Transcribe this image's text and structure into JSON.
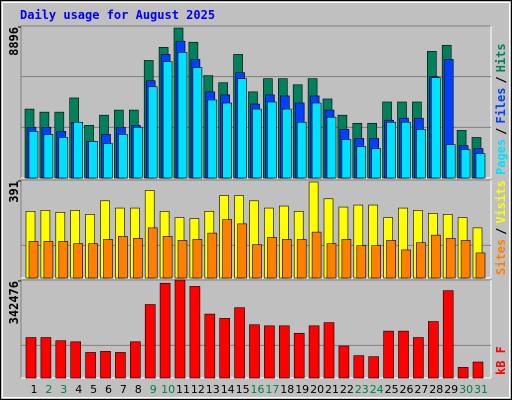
{
  "chart_data": [
    {
      "type": "bar",
      "title": "Daily usage for August 2025",
      "ylim": [
        0,
        8896
      ],
      "yticks": [
        8896
      ],
      "legend_separator": "/",
      "series": [
        {
          "name": "Pages",
          "color": "#00e0ff",
          "values": [
            2728,
            2550,
            2372,
            3262,
            2135,
            2016,
            2550,
            2965,
            5338,
            6820,
            7354,
            6464,
            4567,
            4389,
            5812,
            4033,
            4448,
            4033,
            3262,
            4389,
            3558,
            2254,
            1838,
            1720,
            3262,
            3262,
            2847,
            5871,
            1957,
            1661,
            1423
          ]
        },
        {
          "name": "Files",
          "color": "#0040ff",
          "values": [
            2965,
            2965,
            2728,
            3262,
            2135,
            2550,
            2965,
            3084,
            5693,
            7235,
            8006,
            6939,
            5041,
            4863,
            6168,
            4329,
            4863,
            4804,
            4389,
            4804,
            3974,
            2847,
            2313,
            2313,
            3380,
            3499,
            3499,
            5931,
            6939,
            1898,
            1720
          ]
        },
        {
          "name": "Hits",
          "color": "#00805c",
          "values": [
            4033,
            3855,
            3855,
            4685,
            3084,
            3677,
            3974,
            3974,
            6880,
            7650,
            8777,
            7947,
            5990,
            5575,
            7235,
            5041,
            5812,
            5812,
            5456,
            5812,
            4626,
            3677,
            3203,
            3203,
            4448,
            4448,
            4448,
            7413,
            7769,
            2787,
            2372
          ]
        }
      ]
    },
    {
      "type": "bar",
      "ylim": [
        0,
        391
      ],
      "yticks": [
        391
      ],
      "legend_separator": "/",
      "series": [
        {
          "name": "Sites",
          "color": "#ff8000",
          "values": [
            146,
            146,
            146,
            137,
            137,
            154,
            166,
            158,
            200,
            166,
            150,
            154,
            179,
            233,
            216,
            133,
            162,
            154,
            154,
            183,
            137,
            154,
            129,
            129,
            150,
            112,
            141,
            171,
            158,
            150,
            100
          ]
        },
        {
          "name": "Visits",
          "color": "#ffff00",
          "values": [
            266,
            270,
            262,
            270,
            254,
            308,
            279,
            279,
            349,
            266,
            241,
            237,
            266,
            329,
            329,
            308,
            279,
            287,
            266,
            383,
            316,
            283,
            291,
            291,
            241,
            279,
            270,
            258,
            254,
            241,
            200
          ]
        }
      ]
    },
    {
      "type": "bar",
      "ylim": [
        0,
        342476
      ],
      "yticks": [
        342476
      ],
      "categories": [
        "1",
        "2",
        "3",
        "4",
        "5",
        "6",
        "7",
        "8",
        "9",
        "10",
        "11",
        "12",
        "13",
        "14",
        "15",
        "16",
        "17",
        "18",
        "19",
        "20",
        "21",
        "22",
        "23",
        "24",
        "25",
        "26",
        "27",
        "28",
        "29",
        "30",
        "31"
      ],
      "category_colors": [
        "#000000",
        "#008040",
        "#008040",
        "#000000",
        "#000000",
        "#000000",
        "#000000",
        "#000000",
        "#008040",
        "#008040",
        "#000000",
        "#000000",
        "#000000",
        "#000000",
        "#000000",
        "#008040",
        "#008040",
        "#000000",
        "#000000",
        "#000000",
        "#000000",
        "#000000",
        "#008040",
        "#008040",
        "#000000",
        "#000000",
        "#000000",
        "#000000",
        "#000000",
        "#008040",
        "#008040"
      ],
      "series": [
        {
          "name": "kB F",
          "color": "#ff0000",
          "values": [
            141436,
            141436,
            130270,
            126548,
            89328,
            93050,
            89328,
            126548,
            256818,
            331258,
            342424,
            320092,
            223320,
            208432,
            245652,
            186100,
            182378,
            182378,
            156324,
            182378,
            193544,
            111660,
            78162,
            74440,
            163768,
            163768,
            141436,
            197266,
            305204,
            37220,
            55830
          ]
        }
      ]
    }
  ]
}
